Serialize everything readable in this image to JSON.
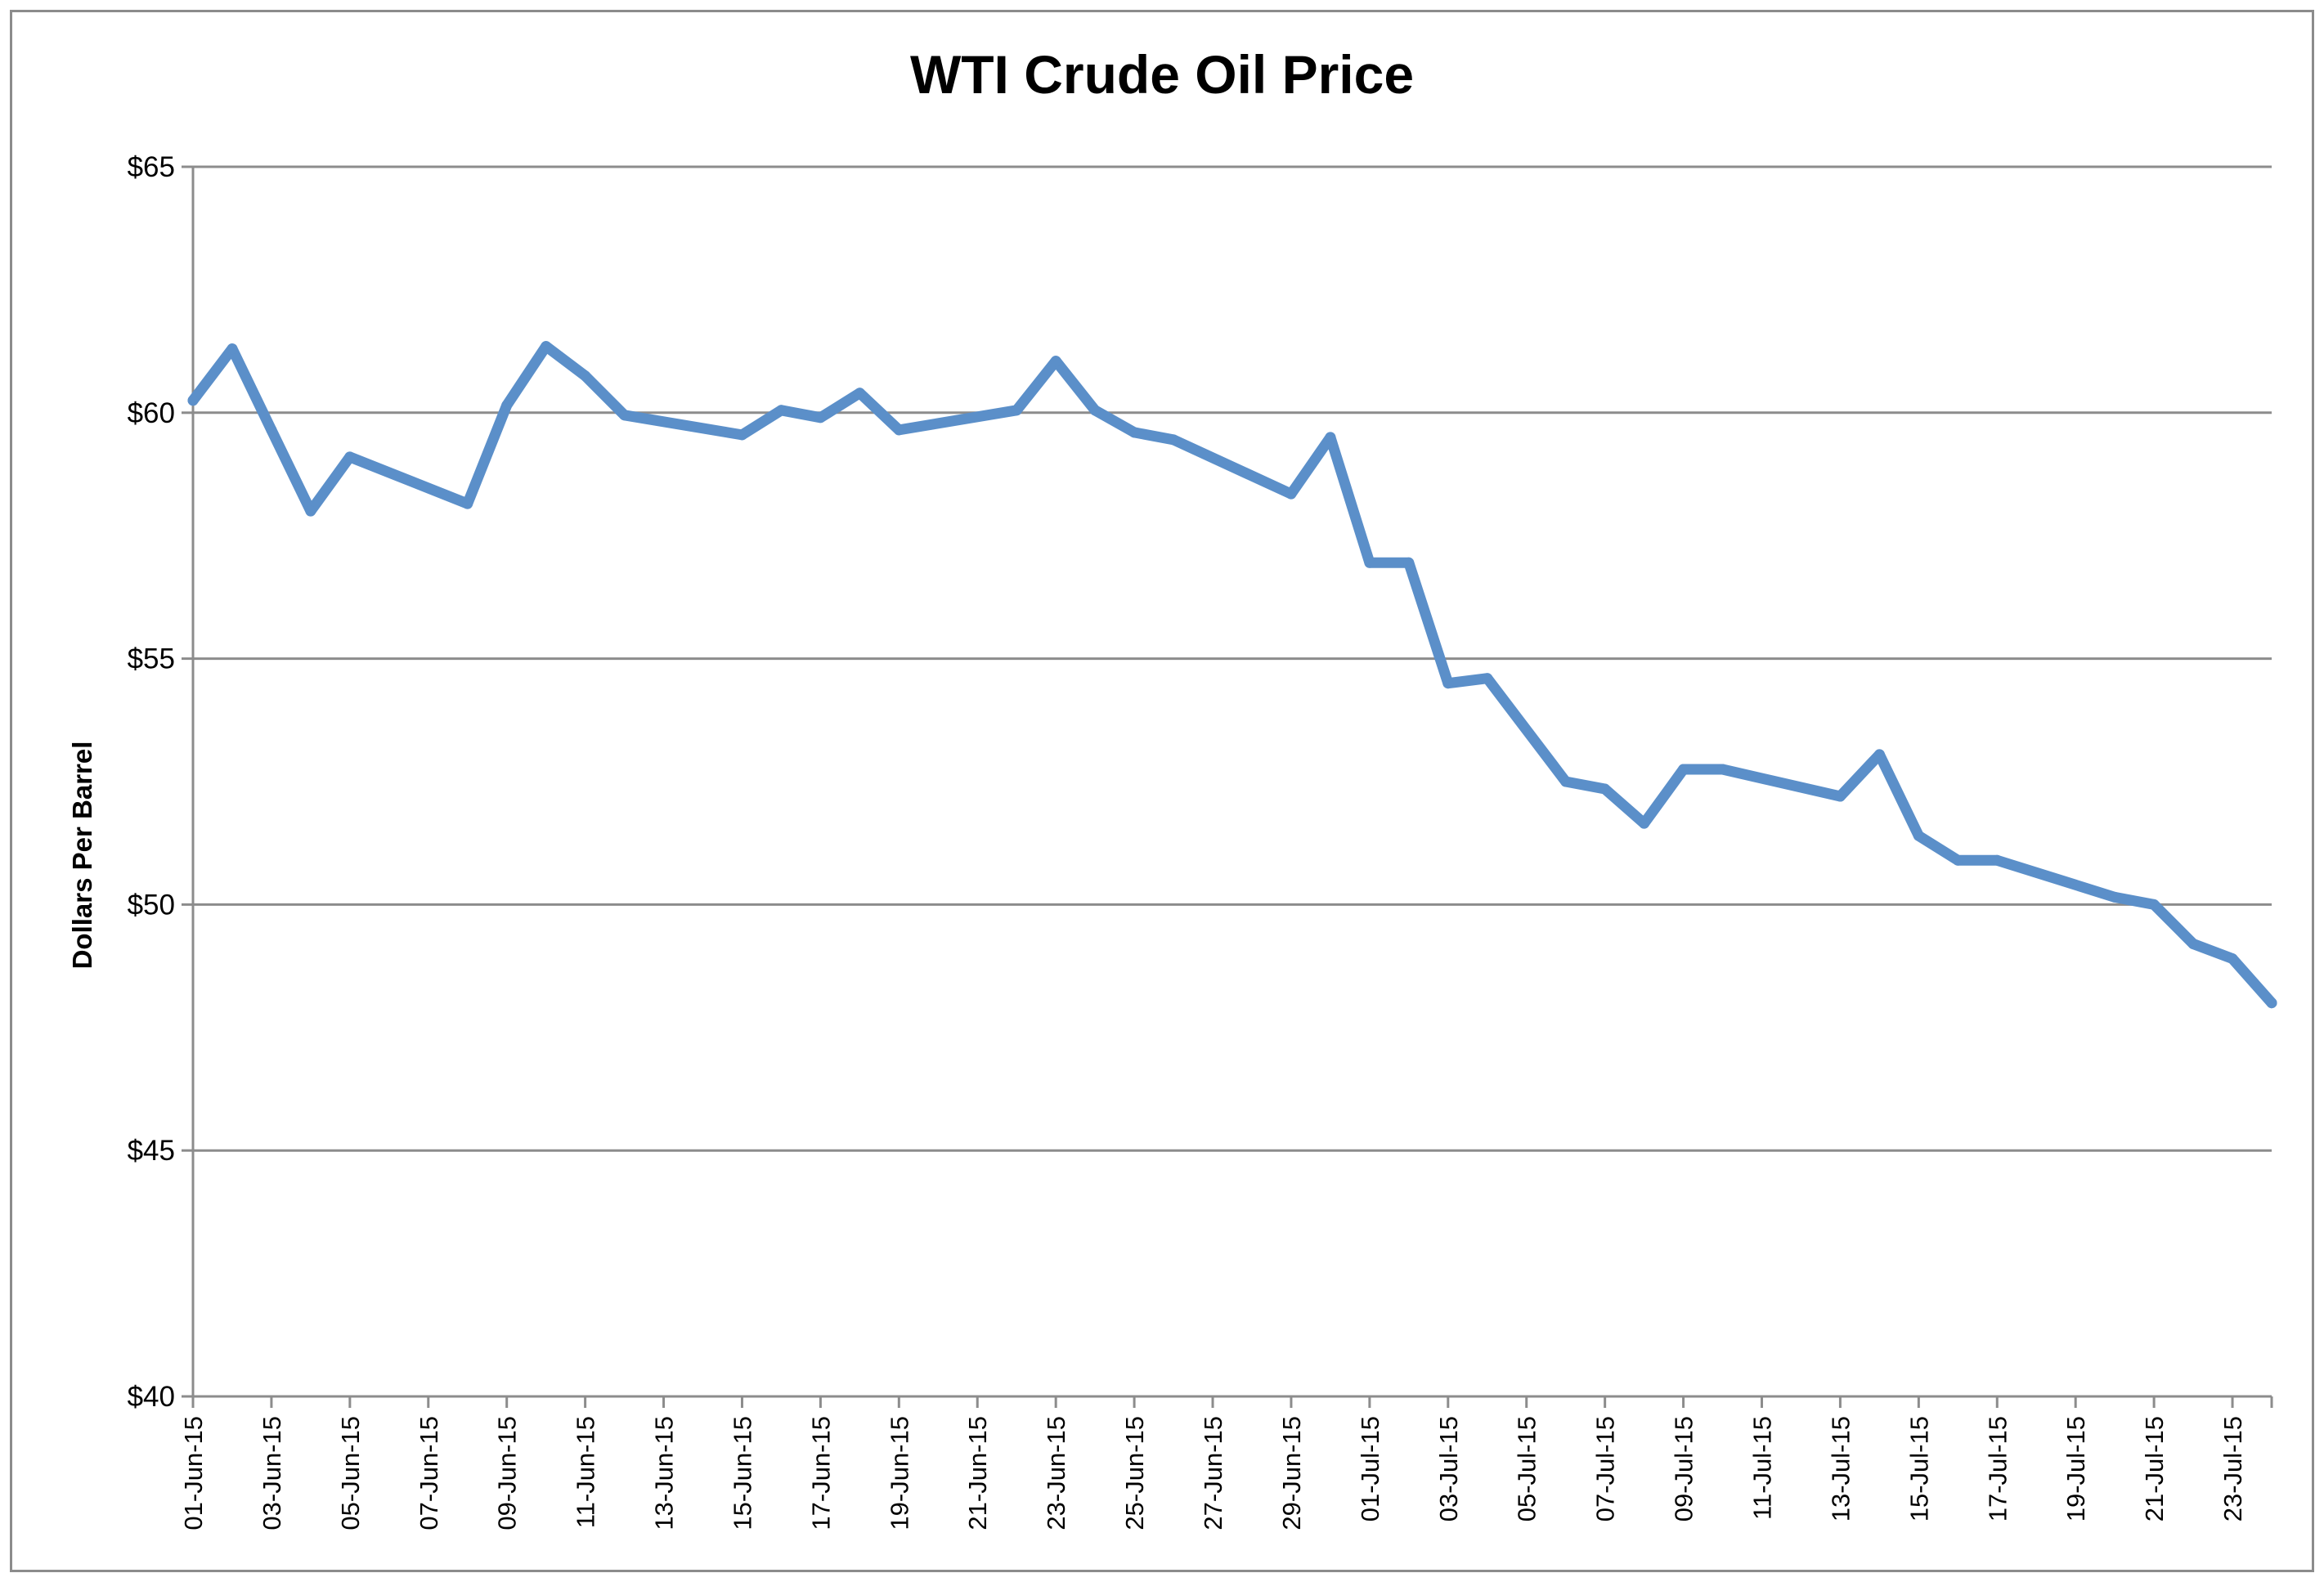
{
  "chart_data": {
    "type": "line",
    "title": "WTI Crude Oil Price",
    "xlabel": "",
    "ylabel": "Dollars Per Barrel",
    "ylim": [
      40,
      65
    ],
    "yticks": [
      {
        "value": 40,
        "label": "$40"
      },
      {
        "value": 45,
        "label": "$45"
      },
      {
        "value": 50,
        "label": "$50"
      },
      {
        "value": 55,
        "label": "$55"
      },
      {
        "value": 60,
        "label": "$60"
      },
      {
        "value": 65,
        "label": "$65"
      }
    ],
    "xlim": [
      "2015-06-01",
      "2015-07-24"
    ],
    "xticks": [
      {
        "date": "2015-06-01",
        "label": "01-Jun-15"
      },
      {
        "date": "2015-06-03",
        "label": "03-Jun-15"
      },
      {
        "date": "2015-06-05",
        "label": "05-Jun-15"
      },
      {
        "date": "2015-06-07",
        "label": "07-Jun-15"
      },
      {
        "date": "2015-06-09",
        "label": "09-Jun-15"
      },
      {
        "date": "2015-06-11",
        "label": "11-Jun-15"
      },
      {
        "date": "2015-06-13",
        "label": "13-Jun-15"
      },
      {
        "date": "2015-06-15",
        "label": "15-Jun-15"
      },
      {
        "date": "2015-06-17",
        "label": "17-Jun-15"
      },
      {
        "date": "2015-06-19",
        "label": "19-Jun-15"
      },
      {
        "date": "2015-06-21",
        "label": "21-Jun-15"
      },
      {
        "date": "2015-06-23",
        "label": "23-Jun-15"
      },
      {
        "date": "2015-06-25",
        "label": "25-Jun-15"
      },
      {
        "date": "2015-06-27",
        "label": "27-Jun-15"
      },
      {
        "date": "2015-06-29",
        "label": "29-Jun-15"
      },
      {
        "date": "2015-07-01",
        "label": "01-Jul-15"
      },
      {
        "date": "2015-07-03",
        "label": "03-Jul-15"
      },
      {
        "date": "2015-07-05",
        "label": "05-Jul-15"
      },
      {
        "date": "2015-07-07",
        "label": "07-Jul-15"
      },
      {
        "date": "2015-07-09",
        "label": "09-Jul-15"
      },
      {
        "date": "2015-07-11",
        "label": "11-Jul-15"
      },
      {
        "date": "2015-07-13",
        "label": "13-Jul-15"
      },
      {
        "date": "2015-07-15",
        "label": "15-Jul-15"
      },
      {
        "date": "2015-07-17",
        "label": "17-Jul-15"
      },
      {
        "date": "2015-07-19",
        "label": "19-Jul-15"
      },
      {
        "date": "2015-07-21",
        "label": "21-Jul-15"
      },
      {
        "date": "2015-07-23",
        "label": "23-Jul-15"
      }
    ],
    "grid": {
      "horizontal": true,
      "vertical": false
    },
    "legend": "none",
    "series": [
      {
        "color": "#5b8fc9",
        "points": [
          {
            "x": "2015-06-01",
            "y": 60.25
          },
          {
            "x": "2015-06-02",
            "y": 61.3
          },
          {
            "x": "2015-06-03",
            "y": 59.65
          },
          {
            "x": "2015-06-04",
            "y": 58.0
          },
          {
            "x": "2015-06-05",
            "y": 59.1
          },
          {
            "x": "2015-06-08",
            "y": 58.15
          },
          {
            "x": "2015-06-09",
            "y": 60.15
          },
          {
            "x": "2015-06-10",
            "y": 61.35
          },
          {
            "x": "2015-06-11",
            "y": 60.75
          },
          {
            "x": "2015-06-12",
            "y": 59.95
          },
          {
            "x": "2015-06-15",
            "y": 59.55
          },
          {
            "x": "2015-06-16",
            "y": 60.05
          },
          {
            "x": "2015-06-17",
            "y": 59.9
          },
          {
            "x": "2015-06-18",
            "y": 60.4
          },
          {
            "x": "2015-06-19",
            "y": 59.65
          },
          {
            "x": "2015-06-22",
            "y": 60.05
          },
          {
            "x": "2015-06-23",
            "y": 61.05
          },
          {
            "x": "2015-06-24",
            "y": 60.05
          },
          {
            "x": "2015-06-25",
            "y": 59.6
          },
          {
            "x": "2015-06-26",
            "y": 59.45
          },
          {
            "x": "2015-06-29",
            "y": 58.35
          },
          {
            "x": "2015-06-30",
            "y": 59.5
          },
          {
            "x": "2015-07-01",
            "y": 56.95
          },
          {
            "x": "2015-07-02",
            "y": 56.95
          },
          {
            "x": "2015-07-03",
            "y": 54.5
          },
          {
            "x": "2015-07-04",
            "y": 54.6
          },
          {
            "x": "2015-07-06",
            "y": 52.5
          },
          {
            "x": "2015-07-07",
            "y": 52.35
          },
          {
            "x": "2015-07-08",
            "y": 51.65
          },
          {
            "x": "2015-07-09",
            "y": 52.75
          },
          {
            "x": "2015-07-10",
            "y": 52.75
          },
          {
            "x": "2015-07-13",
            "y": 52.2
          },
          {
            "x": "2015-07-14",
            "y": 53.05
          },
          {
            "x": "2015-07-15",
            "y": 51.4
          },
          {
            "x": "2015-07-16",
            "y": 50.9
          },
          {
            "x": "2015-07-17",
            "y": 50.9
          },
          {
            "x": "2015-07-20",
            "y": 50.15
          },
          {
            "x": "2015-07-21",
            "y": 50.0
          },
          {
            "x": "2015-07-22",
            "y": 49.2
          },
          {
            "x": "2015-07-23",
            "y": 48.9
          },
          {
            "x": "2015-07-24",
            "y": 48.0
          }
        ]
      }
    ]
  }
}
